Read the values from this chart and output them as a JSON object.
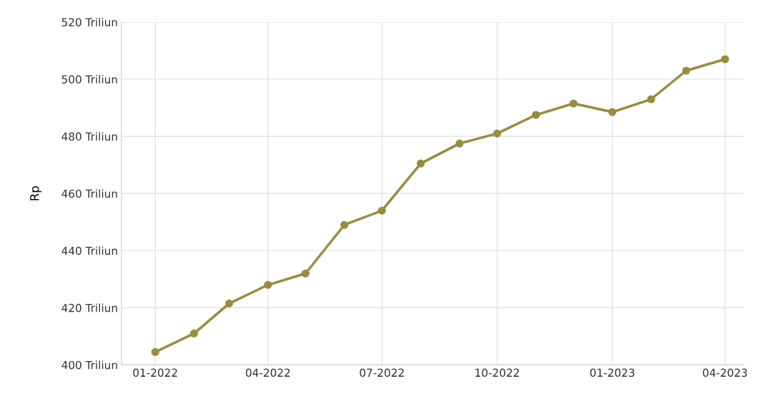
{
  "chart_data": {
    "type": "line",
    "ylabel": "Rp",
    "x": [
      "2022-01",
      "2022-02",
      "2022-03",
      "2022-04",
      "2022-05",
      "2022-06",
      "2022-07",
      "2022-08",
      "2022-09",
      "2022-10",
      "2022-11",
      "2022-12",
      "2023-01",
      "2023-02",
      "2023-03",
      "2023-04"
    ],
    "series": [
      {
        "color": "#9a8c3e",
        "values": [
          404.5,
          411,
          421.5,
          428,
          432,
          449,
          454,
          470.5,
          477.5,
          481,
          487.5,
          491.5,
          488.5,
          493,
          503,
          507
        ]
      }
    ],
    "xlim": [
      "2021-12-05",
      "2023-04-16"
    ],
    "xticks": [
      {
        "value": "2022-01",
        "label": "01-2022"
      },
      {
        "value": "2022-04",
        "label": "04-2022"
      },
      {
        "value": "2022-07",
        "label": "07-2022"
      },
      {
        "value": "2022-10",
        "label": "10-2022"
      },
      {
        "value": "2023-01",
        "label": "01-2023"
      },
      {
        "value": "2023-04",
        "label": "04-2023"
      }
    ],
    "ylim": [
      400,
      520
    ],
    "yticks": [
      {
        "value": 400,
        "label": "400 Triliun"
      },
      {
        "value": 420,
        "label": "420 Triliun"
      },
      {
        "value": 440,
        "label": "440 Triliun"
      },
      {
        "value": 460,
        "label": "460 Triliun"
      },
      {
        "value": 480,
        "label": "480 Triliun"
      },
      {
        "value": 500,
        "label": "500 Triliun"
      },
      {
        "value": 520,
        "label": "520 Triliun"
      }
    ],
    "grid": true,
    "marker": "circle",
    "line_style": "solid",
    "legend": false
  }
}
